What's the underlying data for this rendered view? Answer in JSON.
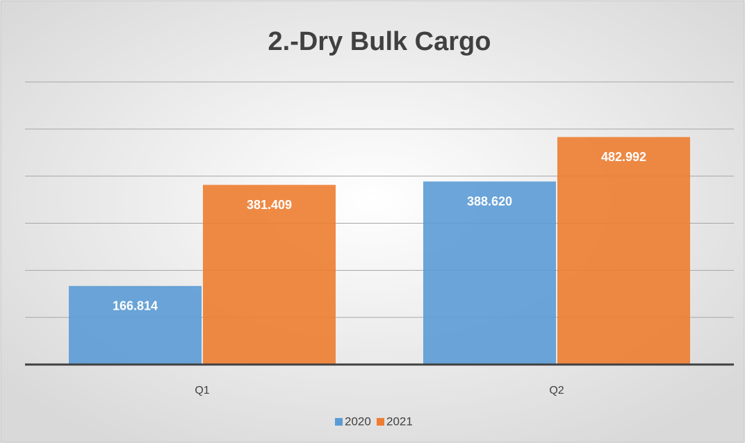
{
  "chart_data": {
    "type": "bar",
    "title": "2.-Dry Bulk Cargo",
    "categories": [
      "Q1",
      "Q2"
    ],
    "series": [
      {
        "name": "2020",
        "color": "#5b9bd5",
        "values": [
          166.814,
          388.62
        ],
        "value_labels": [
          "166.814",
          "388.620"
        ]
      },
      {
        "name": "2021",
        "color": "#ed7d31",
        "values": [
          381.409,
          482.992
        ],
        "value_labels": [
          "381.409",
          "482.992"
        ]
      }
    ],
    "ylim": [
      0,
      600
    ],
    "yticks": [
      0,
      100,
      200,
      300,
      400,
      500,
      600
    ],
    "grid": true,
    "legend": "bottom"
  }
}
